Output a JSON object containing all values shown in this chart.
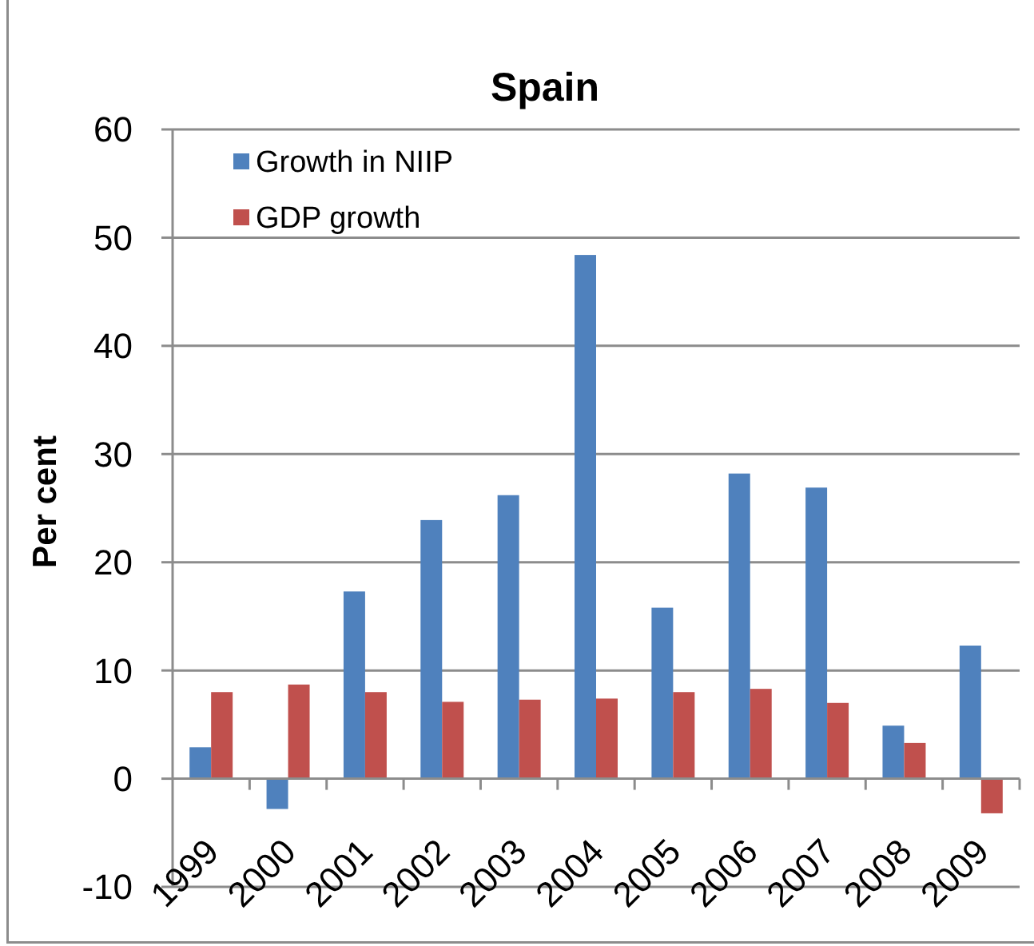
{
  "chart_data": {
    "type": "bar",
    "title": "Spain",
    "ylabel": "Per cent",
    "categories": [
      "1999",
      "2000",
      "2001",
      "2002",
      "2003",
      "2004",
      "2005",
      "2006",
      "2007",
      "2008",
      "2009"
    ],
    "series": [
      {
        "name": "Growth in NIIP",
        "color": "#4f81bd",
        "values": [
          2.9,
          -2.8,
          17.3,
          23.9,
          26.2,
          48.4,
          15.8,
          28.2,
          26.9,
          4.9,
          12.3
        ]
      },
      {
        "name": "GDP growth",
        "color": "#c0504d",
        "values": [
          8.0,
          8.7,
          8.0,
          7.1,
          7.3,
          7.4,
          8.0,
          8.3,
          7.0,
          3.3,
          -3.2
        ]
      }
    ],
    "ylim": [
      -10,
      60
    ],
    "yticks": [
      -10,
      0,
      10,
      20,
      30,
      40,
      50,
      60
    ],
    "grid": "y",
    "legend": "top left"
  }
}
